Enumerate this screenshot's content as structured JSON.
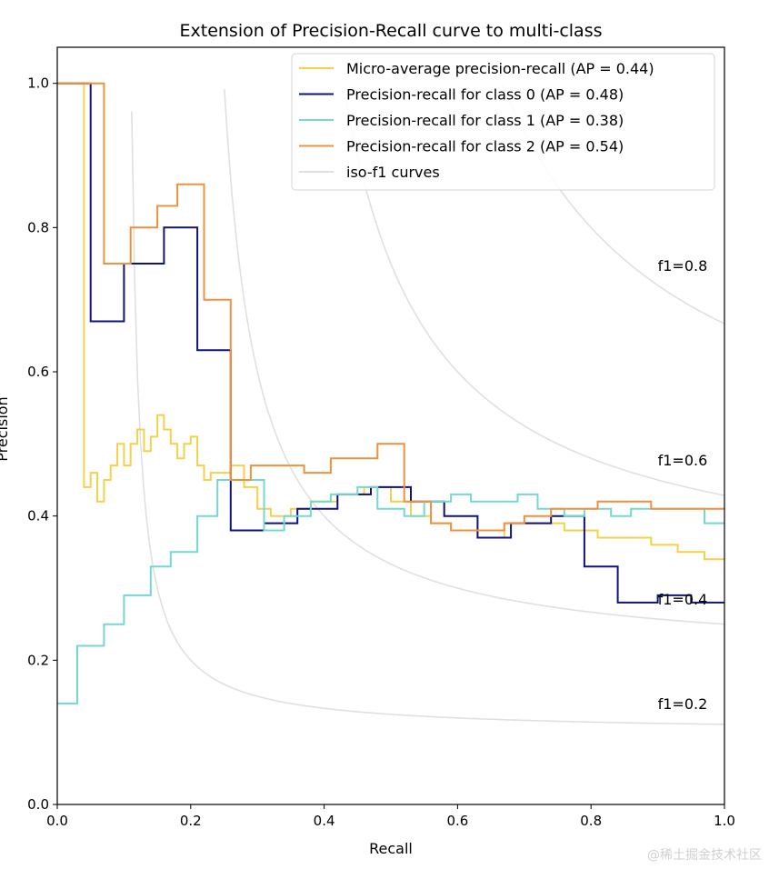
{
  "chart_data": {
    "type": "line",
    "title": "Extension of Precision-Recall curve to multi-class",
    "xlabel": "Recall",
    "ylabel": "Precision",
    "xlim": [
      0.0,
      1.0
    ],
    "ylim": [
      0.0,
      1.05
    ],
    "xticks": [
      "0.0",
      "0.2",
      "0.4",
      "0.6",
      "0.8",
      "1.0"
    ],
    "yticks": [
      "0.0",
      "0.2",
      "0.4",
      "0.6",
      "0.8",
      "1.0"
    ],
    "grid": false,
    "legend_position": "top-right",
    "iso_f1": [
      {
        "f1": 0.2,
        "label": "f1=0.2",
        "color": "#e0e0e0"
      },
      {
        "f1": 0.4,
        "label": "f1=0.4",
        "color": "#e0e0e0"
      },
      {
        "f1": 0.6,
        "label": "f1=0.6",
        "color": "#e0e0e0"
      },
      {
        "f1": 0.8,
        "label": "f1=0.8",
        "color": "#e0e0e0"
      }
    ],
    "series": [
      {
        "name": "Micro-average precision-recall (AP = 0.44)",
        "color": "#f2d14b",
        "x": [
          0.0,
          0.04,
          0.04,
          0.05,
          0.05,
          0.06,
          0.06,
          0.07,
          0.07,
          0.08,
          0.08,
          0.09,
          0.09,
          0.1,
          0.1,
          0.11,
          0.11,
          0.12,
          0.12,
          0.13,
          0.13,
          0.14,
          0.14,
          0.15,
          0.15,
          0.16,
          0.16,
          0.17,
          0.17,
          0.18,
          0.18,
          0.19,
          0.19,
          0.2,
          0.2,
          0.21,
          0.21,
          0.22,
          0.22,
          0.23,
          0.23,
          0.24,
          0.24,
          0.26,
          0.26,
          0.28,
          0.28,
          0.3,
          0.3,
          0.32,
          0.32,
          0.35,
          0.35,
          0.38,
          0.38,
          0.42,
          0.42,
          0.46,
          0.46,
          0.5,
          0.5,
          0.53,
          0.53,
          0.56,
          0.56,
          0.59,
          0.59,
          0.63,
          0.63,
          0.67,
          0.67,
          0.71,
          0.71,
          0.76,
          0.76,
          0.81,
          0.81,
          0.85,
          0.85,
          0.89,
          0.89,
          0.93,
          0.93,
          0.97,
          0.97,
          1.0
        ],
        "y": [
          1.0,
          1.0,
          0.44,
          0.44,
          0.46,
          0.46,
          0.42,
          0.42,
          0.45,
          0.45,
          0.47,
          0.47,
          0.5,
          0.5,
          0.47,
          0.47,
          0.5,
          0.5,
          0.52,
          0.52,
          0.49,
          0.49,
          0.51,
          0.51,
          0.54,
          0.54,
          0.52,
          0.52,
          0.5,
          0.5,
          0.48,
          0.48,
          0.5,
          0.5,
          0.51,
          0.51,
          0.47,
          0.47,
          0.45,
          0.45,
          0.46,
          0.46,
          0.46,
          0.46,
          0.47,
          0.47,
          0.44,
          0.44,
          0.41,
          0.41,
          0.4,
          0.4,
          0.41,
          0.41,
          0.42,
          0.42,
          0.43,
          0.43,
          0.44,
          0.44,
          0.42,
          0.42,
          0.4,
          0.4,
          0.39,
          0.39,
          0.38,
          0.38,
          0.37,
          0.37,
          0.39,
          0.39,
          0.39,
          0.39,
          0.38,
          0.38,
          0.37,
          0.37,
          0.37,
          0.37,
          0.36,
          0.36,
          0.35,
          0.35,
          0.34,
          0.34
        ]
      },
      {
        "name": "Precision-recall for class 0 (AP = 0.48)",
        "color": "#10137a",
        "x": [
          0.0,
          0.05,
          0.05,
          0.1,
          0.1,
          0.16,
          0.16,
          0.21,
          0.21,
          0.26,
          0.26,
          0.31,
          0.31,
          0.36,
          0.36,
          0.42,
          0.42,
          0.47,
          0.47,
          0.53,
          0.53,
          0.58,
          0.58,
          0.63,
          0.63,
          0.68,
          0.68,
          0.74,
          0.74,
          0.79,
          0.79,
          0.84,
          0.84,
          0.9,
          0.9,
          0.95,
          0.95,
          1.0
        ],
        "y": [
          1.0,
          1.0,
          0.67,
          0.67,
          0.75,
          0.75,
          0.8,
          0.8,
          0.63,
          0.63,
          0.38,
          0.38,
          0.39,
          0.39,
          0.41,
          0.41,
          0.43,
          0.43,
          0.44,
          0.44,
          0.42,
          0.42,
          0.4,
          0.4,
          0.37,
          0.37,
          0.39,
          0.39,
          0.4,
          0.4,
          0.33,
          0.33,
          0.28,
          0.28,
          0.29,
          0.29,
          0.28,
          0.28
        ]
      },
      {
        "name": "Precision-recall for class 1 (AP = 0.38)",
        "color": "#74d8d0",
        "x": [
          0.0,
          0.03,
          0.03,
          0.07,
          0.07,
          0.1,
          0.1,
          0.14,
          0.14,
          0.17,
          0.17,
          0.21,
          0.21,
          0.24,
          0.24,
          0.28,
          0.28,
          0.31,
          0.31,
          0.34,
          0.34,
          0.38,
          0.38,
          0.41,
          0.41,
          0.45,
          0.45,
          0.48,
          0.48,
          0.52,
          0.52,
          0.55,
          0.55,
          0.59,
          0.59,
          0.62,
          0.62,
          0.66,
          0.66,
          0.69,
          0.69,
          0.72,
          0.72,
          0.76,
          0.76,
          0.79,
          0.79,
          0.83,
          0.83,
          0.86,
          0.86,
          0.9,
          0.9,
          0.93,
          0.93,
          0.97,
          0.97,
          1.0
        ],
        "y": [
          0.14,
          0.14,
          0.22,
          0.22,
          0.25,
          0.25,
          0.29,
          0.29,
          0.33,
          0.33,
          0.35,
          0.35,
          0.4,
          0.4,
          0.45,
          0.45,
          0.45,
          0.45,
          0.38,
          0.38,
          0.4,
          0.4,
          0.42,
          0.42,
          0.43,
          0.43,
          0.44,
          0.44,
          0.41,
          0.41,
          0.4,
          0.4,
          0.42,
          0.42,
          0.43,
          0.43,
          0.42,
          0.42,
          0.42,
          0.42,
          0.43,
          0.43,
          0.41,
          0.41,
          0.4,
          0.4,
          0.41,
          0.41,
          0.4,
          0.4,
          0.41,
          0.41,
          0.41,
          0.41,
          0.41,
          0.41,
          0.39,
          0.39
        ]
      },
      {
        "name": "Precision-recall for class 2 (AP = 0.54)",
        "color": "#f0913d",
        "x": [
          0.0,
          0.07,
          0.07,
          0.08,
          0.08,
          0.11,
          0.11,
          0.15,
          0.15,
          0.18,
          0.18,
          0.22,
          0.22,
          0.26,
          0.26,
          0.29,
          0.29,
          0.33,
          0.33,
          0.37,
          0.37,
          0.41,
          0.41,
          0.45,
          0.45,
          0.48,
          0.48,
          0.52,
          0.52,
          0.56,
          0.56,
          0.59,
          0.59,
          0.63,
          0.63,
          0.67,
          0.67,
          0.7,
          0.7,
          0.74,
          0.74,
          0.78,
          0.78,
          0.81,
          0.81,
          0.85,
          0.85,
          0.89,
          0.89,
          0.93,
          0.93,
          0.96,
          0.96,
          1.0
        ],
        "y": [
          1.0,
          1.0,
          0.75,
          0.75,
          0.75,
          0.75,
          0.8,
          0.8,
          0.83,
          0.83,
          0.86,
          0.86,
          0.7,
          0.7,
          0.45,
          0.45,
          0.47,
          0.47,
          0.47,
          0.47,
          0.46,
          0.46,
          0.48,
          0.48,
          0.48,
          0.48,
          0.5,
          0.5,
          0.42,
          0.42,
          0.39,
          0.39,
          0.38,
          0.38,
          0.38,
          0.38,
          0.39,
          0.39,
          0.4,
          0.4,
          0.41,
          0.41,
          0.41,
          0.41,
          0.42,
          0.42,
          0.42,
          0.42,
          0.41,
          0.41,
          0.41,
          0.41,
          0.41,
          0.41
        ]
      }
    ],
    "legend_iso_label": "iso-f1 curves"
  },
  "watermark": "@稀土掘金技术社区"
}
